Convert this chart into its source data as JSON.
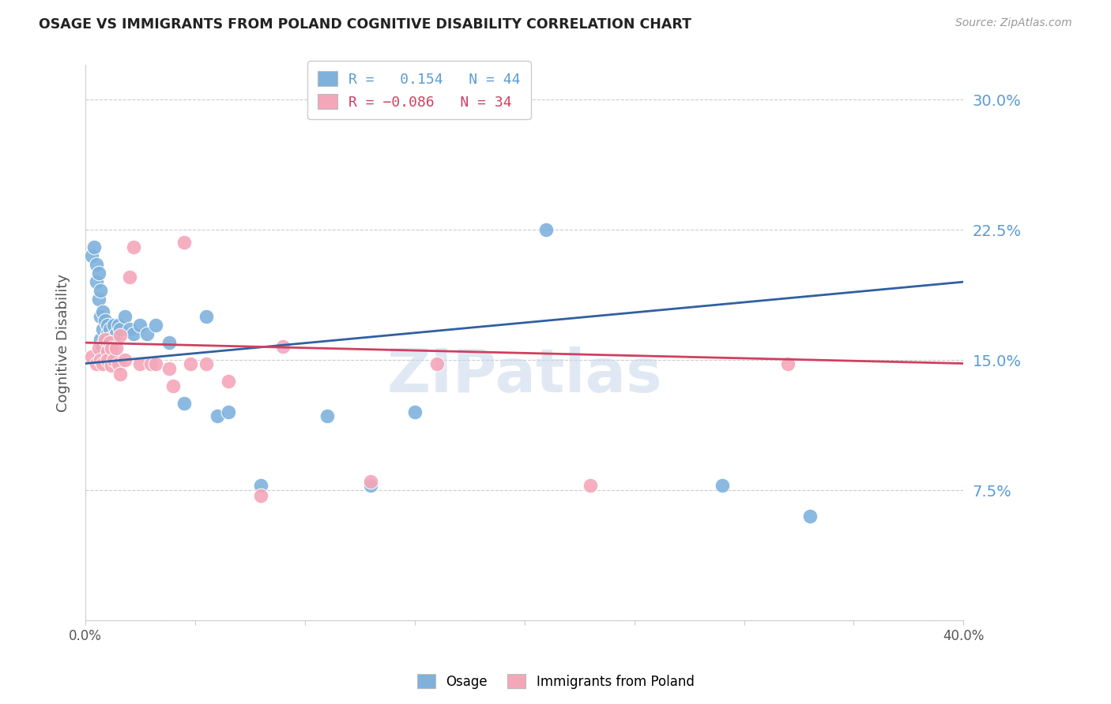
{
  "title": "OSAGE VS IMMIGRANTS FROM POLAND COGNITIVE DISABILITY CORRELATION CHART",
  "source": "Source: ZipAtlas.com",
  "ylabel": "Cognitive Disability",
  "legend_labels": [
    "Osage",
    "Immigrants from Poland"
  ],
  "osage_R": 0.154,
  "osage_N": 44,
  "poland_R": -0.086,
  "poland_N": 34,
  "xlim": [
    0.0,
    0.4
  ],
  "ylim": [
    0.0,
    0.32
  ],
  "yticks": [
    0.0,
    0.075,
    0.15,
    0.225,
    0.3
  ],
  "ytick_labels": [
    "",
    "7.5%",
    "15.0%",
    "22.5%",
    "30.0%"
  ],
  "osage_color": "#7EB2DD",
  "poland_color": "#F4A7B9",
  "osage_line_color": "#3060A0",
  "poland_line_color": "#D04060",
  "watermark": "ZIPatlas",
  "osage_line_x0": 0.0,
  "osage_line_y0": 0.148,
  "osage_line_x1": 0.4,
  "osage_line_y1": 0.195,
  "poland_line_x0": 0.0,
  "poland_line_y0": 0.16,
  "poland_line_x1": 0.4,
  "poland_line_y1": 0.148,
  "osage_x": [
    0.003,
    0.004,
    0.005,
    0.005,
    0.006,
    0.006,
    0.007,
    0.007,
    0.007,
    0.008,
    0.008,
    0.008,
    0.009,
    0.009,
    0.01,
    0.01,
    0.01,
    0.01,
    0.011,
    0.011,
    0.012,
    0.012,
    0.013,
    0.014,
    0.015,
    0.016,
    0.018,
    0.02,
    0.022,
    0.025,
    0.028,
    0.032,
    0.038,
    0.045,
    0.055,
    0.06,
    0.065,
    0.08,
    0.11,
    0.13,
    0.15,
    0.21,
    0.29,
    0.33
  ],
  "osage_y": [
    0.21,
    0.215,
    0.205,
    0.195,
    0.2,
    0.185,
    0.19,
    0.175,
    0.162,
    0.168,
    0.178,
    0.158,
    0.173,
    0.162,
    0.17,
    0.165,
    0.158,
    0.153,
    0.168,
    0.157,
    0.163,
    0.152,
    0.17,
    0.165,
    0.17,
    0.168,
    0.175,
    0.168,
    0.165,
    0.17,
    0.165,
    0.17,
    0.16,
    0.125,
    0.175,
    0.118,
    0.12,
    0.078,
    0.118,
    0.078,
    0.12,
    0.225,
    0.078,
    0.06
  ],
  "poland_x": [
    0.003,
    0.005,
    0.006,
    0.007,
    0.008,
    0.009,
    0.01,
    0.01,
    0.011,
    0.012,
    0.012,
    0.013,
    0.014,
    0.015,
    0.016,
    0.016,
    0.018,
    0.02,
    0.022,
    0.025,
    0.03,
    0.032,
    0.038,
    0.04,
    0.045,
    0.048,
    0.055,
    0.065,
    0.08,
    0.09,
    0.13,
    0.16,
    0.23,
    0.32
  ],
  "poland_y": [
    0.152,
    0.148,
    0.157,
    0.15,
    0.148,
    0.162,
    0.155,
    0.15,
    0.16,
    0.157,
    0.147,
    0.15,
    0.157,
    0.148,
    0.164,
    0.142,
    0.15,
    0.198,
    0.215,
    0.148,
    0.148,
    0.148,
    0.145,
    0.135,
    0.218,
    0.148,
    0.148,
    0.138,
    0.072,
    0.158,
    0.08,
    0.148,
    0.078,
    0.148
  ]
}
